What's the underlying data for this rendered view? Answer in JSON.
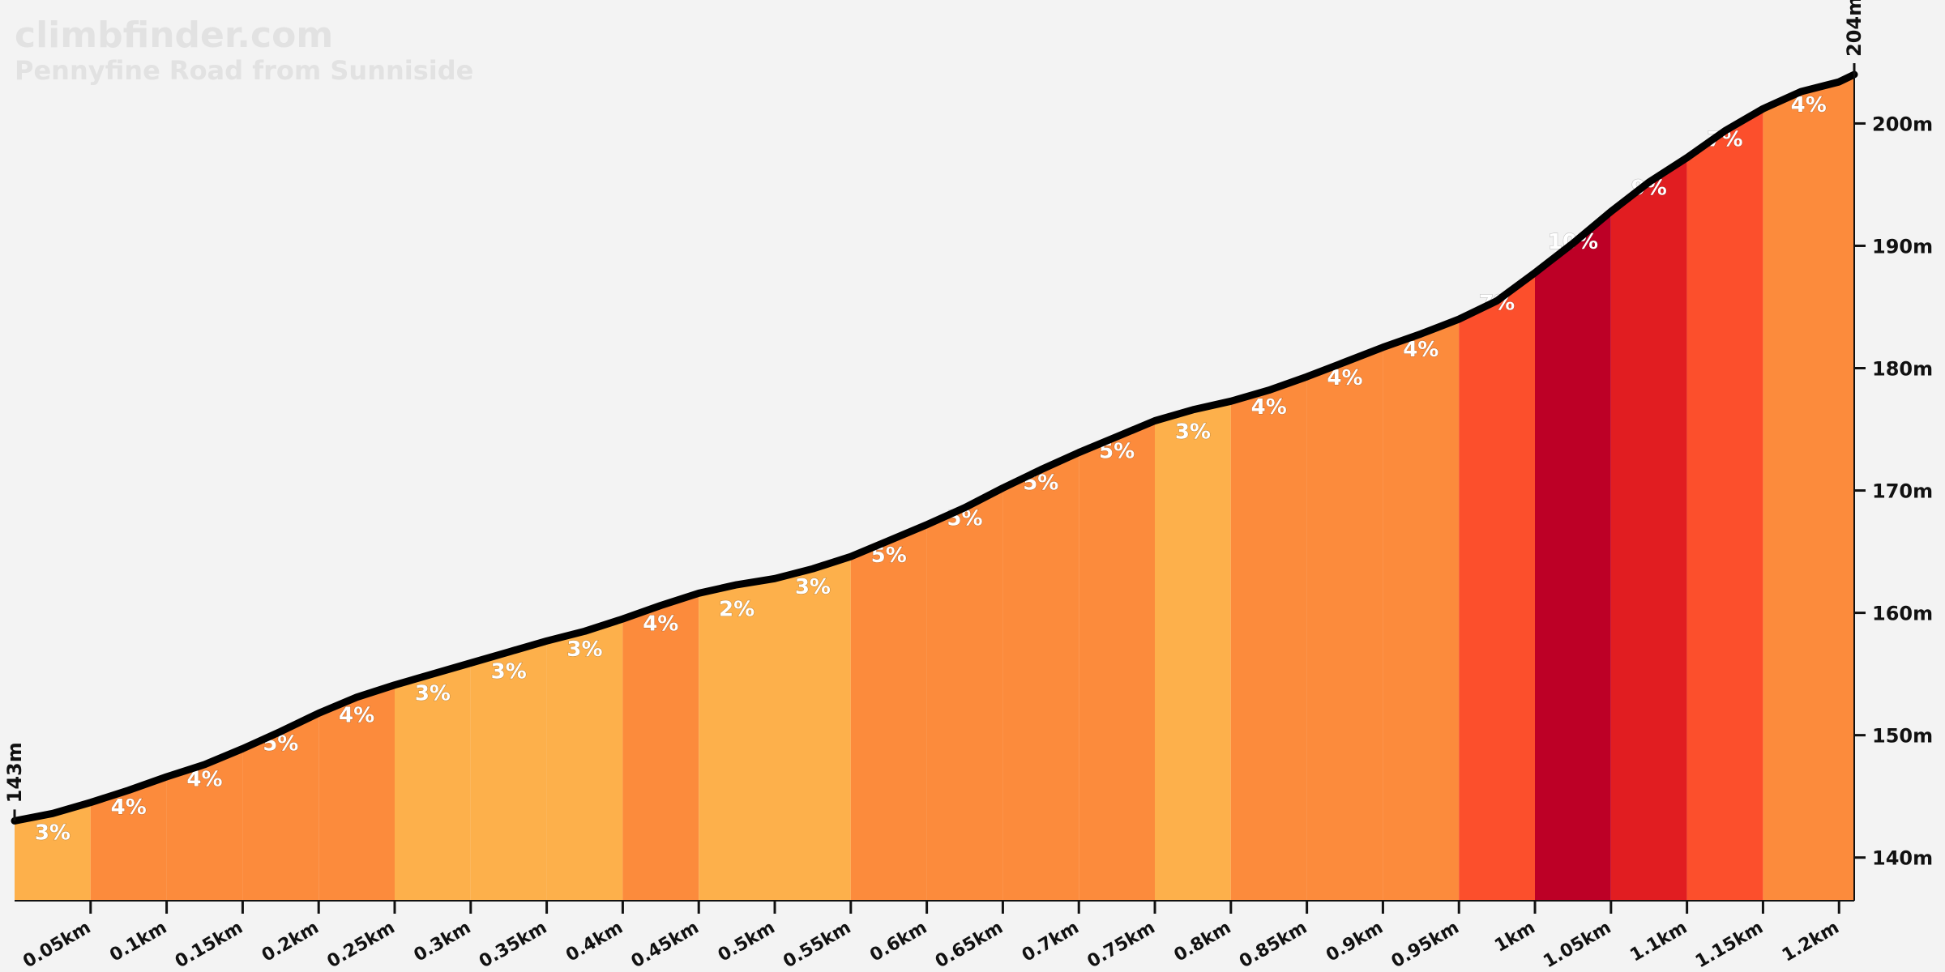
{
  "brand": {
    "site": "climbfinder.com",
    "climb_name": "Pennyfine Road from Sunniside"
  },
  "colors": {
    "background": "#f3f3f3",
    "grade_2_3": "#fdb04b",
    "grade_4_5": "#fc8b3c",
    "grade_7": "#fc4f2c",
    "grade_9": "#e11d21",
    "grade_10": "#bd0026",
    "profile_line": "#000000"
  },
  "chart_data": {
    "type": "area",
    "title": "Pennyfine Road from Sunniside",
    "xlabel": "",
    "ylabel": "",
    "x_unit": "km",
    "y_unit": "m",
    "xlim": [
      0,
      1.2
    ],
    "ylim": [
      137,
      204
    ],
    "grid": false,
    "start_elevation_label": "143m",
    "end_elevation_label": "204m",
    "y_ticks": [
      {
        "value": 140,
        "label": "140m"
      },
      {
        "value": 150,
        "label": "150m"
      },
      {
        "value": 160,
        "label": "160m"
      },
      {
        "value": 170,
        "label": "170m"
      },
      {
        "value": 180,
        "label": "180m"
      },
      {
        "value": 190,
        "label": "190m"
      },
      {
        "value": 200,
        "label": "200m"
      }
    ],
    "x_ticks": [
      {
        "value": 0.05,
        "label": "0.05km"
      },
      {
        "value": 0.1,
        "label": "0.1km"
      },
      {
        "value": 0.15,
        "label": "0.15km"
      },
      {
        "value": 0.2,
        "label": "0.2km"
      },
      {
        "value": 0.25,
        "label": "0.25km"
      },
      {
        "value": 0.3,
        "label": "0.3km"
      },
      {
        "value": 0.35,
        "label": "0.35km"
      },
      {
        "value": 0.4,
        "label": "0.4km"
      },
      {
        "value": 0.45,
        "label": "0.45km"
      },
      {
        "value": 0.5,
        "label": "0.5km"
      },
      {
        "value": 0.55,
        "label": "0.55km"
      },
      {
        "value": 0.6,
        "label": "0.6km"
      },
      {
        "value": 0.65,
        "label": "0.65km"
      },
      {
        "value": 0.7,
        "label": "0.7km"
      },
      {
        "value": 0.75,
        "label": "0.75km"
      },
      {
        "value": 0.8,
        "label": "0.8km"
      },
      {
        "value": 0.85,
        "label": "0.85km"
      },
      {
        "value": 0.9,
        "label": "0.9km"
      },
      {
        "value": 0.95,
        "label": "0.95km"
      },
      {
        "value": 1.0,
        "label": "1km"
      },
      {
        "value": 1.05,
        "label": "1.05km"
      },
      {
        "value": 1.1,
        "label": "1.1km"
      },
      {
        "value": 1.15,
        "label": "1.15km"
      },
      {
        "value": 1.2,
        "label": "1.2km"
      }
    ],
    "profile": [
      {
        "x": 0.0,
        "y": 143.0
      },
      {
        "x": 0.025,
        "y": 143.6
      },
      {
        "x": 0.05,
        "y": 144.5
      },
      {
        "x": 0.075,
        "y": 145.5
      },
      {
        "x": 0.1,
        "y": 146.6
      },
      {
        "x": 0.125,
        "y": 147.6
      },
      {
        "x": 0.15,
        "y": 148.9
      },
      {
        "x": 0.175,
        "y": 150.3
      },
      {
        "x": 0.2,
        "y": 151.8
      },
      {
        "x": 0.225,
        "y": 153.1
      },
      {
        "x": 0.25,
        "y": 154.1
      },
      {
        "x": 0.275,
        "y": 155.0
      },
      {
        "x": 0.3,
        "y": 155.9
      },
      {
        "x": 0.325,
        "y": 156.8
      },
      {
        "x": 0.35,
        "y": 157.7
      },
      {
        "x": 0.375,
        "y": 158.5
      },
      {
        "x": 0.4,
        "y": 159.5
      },
      {
        "x": 0.425,
        "y": 160.6
      },
      {
        "x": 0.45,
        "y": 161.6
      },
      {
        "x": 0.475,
        "y": 162.3
      },
      {
        "x": 0.5,
        "y": 162.8
      },
      {
        "x": 0.525,
        "y": 163.6
      },
      {
        "x": 0.55,
        "y": 164.6
      },
      {
        "x": 0.575,
        "y": 165.9
      },
      {
        "x": 0.6,
        "y": 167.2
      },
      {
        "x": 0.625,
        "y": 168.6
      },
      {
        "x": 0.65,
        "y": 170.2
      },
      {
        "x": 0.675,
        "y": 171.7
      },
      {
        "x": 0.7,
        "y": 173.1
      },
      {
        "x": 0.725,
        "y": 174.4
      },
      {
        "x": 0.75,
        "y": 175.7
      },
      {
        "x": 0.775,
        "y": 176.6
      },
      {
        "x": 0.8,
        "y": 177.3
      },
      {
        "x": 0.825,
        "y": 178.2
      },
      {
        "x": 0.85,
        "y": 179.3
      },
      {
        "x": 0.875,
        "y": 180.5
      },
      {
        "x": 0.9,
        "y": 181.7
      },
      {
        "x": 0.925,
        "y": 182.8
      },
      {
        "x": 0.95,
        "y": 184.0
      },
      {
        "x": 0.975,
        "y": 185.5
      },
      {
        "x": 1.0,
        "y": 187.8
      },
      {
        "x": 1.025,
        "y": 190.2
      },
      {
        "x": 1.05,
        "y": 192.8
      },
      {
        "x": 1.075,
        "y": 195.2
      },
      {
        "x": 1.1,
        "y": 197.2
      },
      {
        "x": 1.125,
        "y": 199.4
      },
      {
        "x": 1.15,
        "y": 201.2
      },
      {
        "x": 1.175,
        "y": 202.6
      },
      {
        "x": 1.2,
        "y": 203.4
      },
      {
        "x": 1.21,
        "y": 204.0
      }
    ],
    "segments": [
      {
        "start": 0.0,
        "end": 0.05,
        "grade": 3,
        "label": "3%",
        "color": "#fdb04b"
      },
      {
        "start": 0.05,
        "end": 0.1,
        "grade": 4,
        "label": "4%",
        "color": "#fc8b3c"
      },
      {
        "start": 0.1,
        "end": 0.15,
        "grade": 4,
        "label": "4%",
        "color": "#fc8b3c"
      },
      {
        "start": 0.15,
        "end": 0.2,
        "grade": 5,
        "label": "5%",
        "color": "#fc8b3c"
      },
      {
        "start": 0.2,
        "end": 0.25,
        "grade": 4,
        "label": "4%",
        "color": "#fc8b3c"
      },
      {
        "start": 0.25,
        "end": 0.3,
        "grade": 3,
        "label": "3%",
        "color": "#fdb04b"
      },
      {
        "start": 0.3,
        "end": 0.35,
        "grade": 3,
        "label": "3%",
        "color": "#fdb04b"
      },
      {
        "start": 0.35,
        "end": 0.4,
        "grade": 3,
        "label": "3%",
        "color": "#fdb04b"
      },
      {
        "start": 0.4,
        "end": 0.45,
        "grade": 4,
        "label": "4%",
        "color": "#fc8b3c"
      },
      {
        "start": 0.45,
        "end": 0.5,
        "grade": 2,
        "label": "2%",
        "color": "#fdb04b"
      },
      {
        "start": 0.5,
        "end": 0.55,
        "grade": 3,
        "label": "3%",
        "color": "#fdb04b"
      },
      {
        "start": 0.55,
        "end": 0.6,
        "grade": 5,
        "label": "5%",
        "color": "#fc8b3c"
      },
      {
        "start": 0.6,
        "end": 0.65,
        "grade": 5,
        "label": "5%",
        "color": "#fc8b3c"
      },
      {
        "start": 0.65,
        "end": 0.7,
        "grade": 5,
        "label": "5%",
        "color": "#fc8b3c"
      },
      {
        "start": 0.7,
        "end": 0.75,
        "grade": 5,
        "label": "5%",
        "color": "#fc8b3c"
      },
      {
        "start": 0.75,
        "end": 0.8,
        "grade": 3,
        "label": "3%",
        "color": "#fdb04b"
      },
      {
        "start": 0.8,
        "end": 0.85,
        "grade": 4,
        "label": "4%",
        "color": "#fc8b3c"
      },
      {
        "start": 0.85,
        "end": 0.9,
        "grade": 4,
        "label": "4%",
        "color": "#fc8b3c"
      },
      {
        "start": 0.9,
        "end": 0.95,
        "grade": 4,
        "label": "4%",
        "color": "#fc8b3c"
      },
      {
        "start": 0.95,
        "end": 1.0,
        "grade": 7,
        "label": "7%",
        "color": "#fc4f2c"
      },
      {
        "start": 1.0,
        "end": 1.05,
        "grade": 10,
        "label": "10%",
        "color": "#bd0026"
      },
      {
        "start": 1.05,
        "end": 1.1,
        "grade": 9,
        "label": "9%",
        "color": "#e11d21"
      },
      {
        "start": 1.1,
        "end": 1.15,
        "grade": 7,
        "label": "7%",
        "color": "#fc4f2c"
      },
      {
        "start": 1.15,
        "end": 1.21,
        "grade": 4,
        "label": "4%",
        "color": "#fc8b3c"
      }
    ]
  }
}
